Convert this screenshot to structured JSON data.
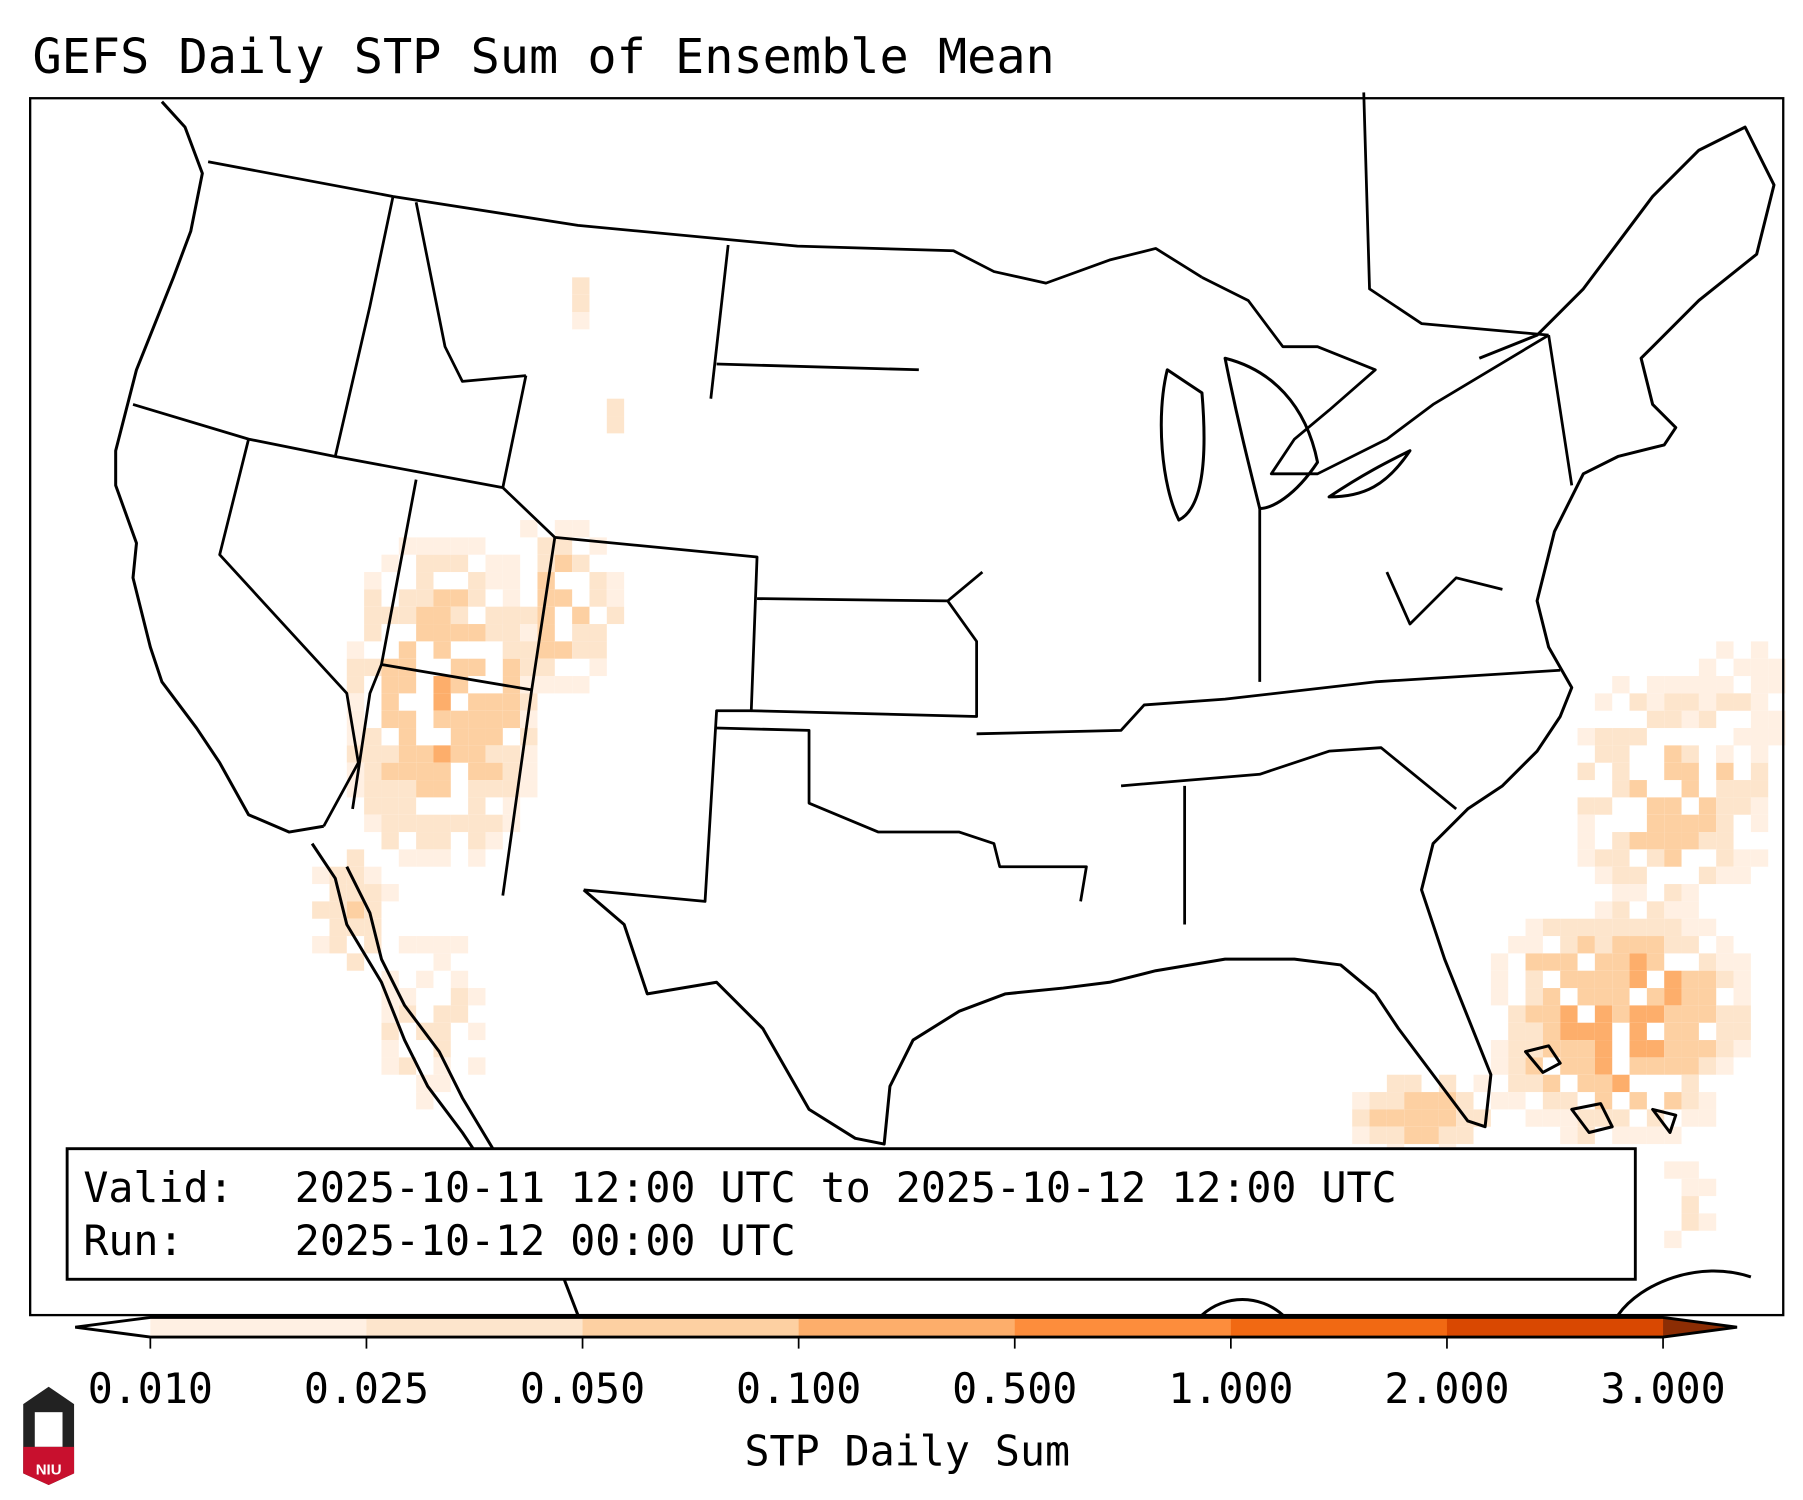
{
  "title": "GEFS Daily STP Sum of Ensemble Mean",
  "info_box": {
    "valid_label": "Valid:",
    "valid_value": "2025-10-11 12:00 UTC to 2025-10-12 12:00 UTC",
    "run_label": "Run:",
    "run_value": "2025-10-12 00:00 UTC"
  },
  "colorbar": {
    "label": "STP Daily Sum",
    "ticks": [
      "0.010",
      "0.025",
      "0.050",
      "0.100",
      "0.500",
      "1.000",
      "2.000",
      "3.000"
    ],
    "colors": [
      "#fff0e3",
      "#fde5cc",
      "#fdd0a2",
      "#fdae6b",
      "#fd8d3c",
      "#f16913",
      "#d94801"
    ],
    "under_color": "#ffffff",
    "over_color": "#8c2d04"
  },
  "logo": {
    "text": "NIU"
  }
}
